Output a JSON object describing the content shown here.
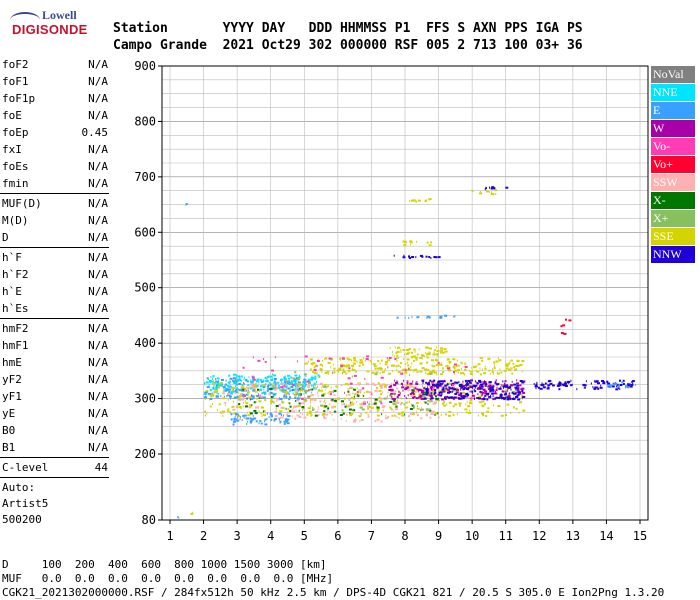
{
  "logo": {
    "line1": "Lowell",
    "line2": "DIGISONDE"
  },
  "header": {
    "row1": "Station       YYYY DAY   DDD HHMMSS P1  FFS S AXN PPS IGA PS",
    "row2": "Campo Grande  2021 Oct29 302 000000 RSF 005 2 713 100 03+ 36"
  },
  "params": {
    "group1": [
      {
        "k": "foF2",
        "v": "N/A"
      },
      {
        "k": "foF1",
        "v": "N/A"
      },
      {
        "k": "foF1p",
        "v": "N/A"
      },
      {
        "k": "foE",
        "v": "N/A"
      },
      {
        "k": "foEp",
        "v": "0.45"
      },
      {
        "k": "fxI",
        "v": "N/A"
      },
      {
        "k": "foEs",
        "v": "N/A"
      },
      {
        "k": "fmin",
        "v": "N/A"
      }
    ],
    "group2": [
      {
        "k": "MUF(D)",
        "v": "N/A"
      },
      {
        "k": "M(D)",
        "v": "N/A"
      },
      {
        "k": "D",
        "v": "N/A"
      }
    ],
    "group3": [
      {
        "k": "h`F",
        "v": "N/A"
      },
      {
        "k": "h`F2",
        "v": "N/A"
      },
      {
        "k": "h`E",
        "v": "N/A"
      },
      {
        "k": "h`Es",
        "v": "N/A"
      }
    ],
    "group4": [
      {
        "k": "hmF2",
        "v": "N/A"
      },
      {
        "k": "hmF1",
        "v": "N/A"
      },
      {
        "k": "hmE",
        "v": "N/A"
      },
      {
        "k": "yF2",
        "v": "N/A"
      },
      {
        "k": "yF1",
        "v": "N/A"
      },
      {
        "k": "yE",
        "v": "N/A"
      },
      {
        "k": "B0",
        "v": "N/A"
      },
      {
        "k": "B1",
        "v": "N/A"
      }
    ],
    "clevel": {
      "k": "C-level",
      "v": "44"
    },
    "auto_label": "Auto:",
    "auto_name": "Artist5",
    "auto_ver": "500200"
  },
  "legend": [
    {
      "label": "NoVal",
      "color": "#808080"
    },
    {
      "label": "NNE",
      "color": "#00e5ff"
    },
    {
      "label": "E",
      "color": "#3aa0ff"
    },
    {
      "label": "W",
      "color": "#a800a8"
    },
    {
      "label": "Vo-",
      "color": "#ff3cb4"
    },
    {
      "label": "Vo+",
      "color": "#ff0030"
    },
    {
      "label": "SSW",
      "color": "#ffb0b0"
    },
    {
      "label": "X-",
      "color": "#007800"
    },
    {
      "label": "X+",
      "color": "#88c060"
    },
    {
      "label": "SSE",
      "color": "#d4d400"
    },
    {
      "label": "NNW",
      "color": "#2000d8"
    }
  ],
  "footer": {
    "row1": "D     100  200  400  600  800 1000 1500 3000 [km]",
    "row2": "MUF   0.0  0.0  0.0  0.0  0.0  0.0  0.0  0.0 [MHz]",
    "row3": "CGK21_2021302000000.RSF / 284fx512h 50 kHz 2.5 km / DPS-4D CGK21 821 / 20.5 S 305.0 E Ion2Png 1.3.20"
  },
  "chart_data": {
    "type": "scatter",
    "xlim": [
      1,
      15
    ],
    "ylim": [
      80,
      900
    ],
    "xticks": [
      "1",
      "2",
      "3",
      "4",
      "5",
      "6",
      "7",
      "8",
      "9",
      "10",
      "11",
      "12",
      "13",
      "14",
      "15"
    ],
    "yticks": [
      "900",
      "800",
      "700",
      "600",
      "500",
      "400",
      "300",
      "200",
      "80"
    ],
    "clusters": [
      {
        "color": "#3aa0ff",
        "x": [
          2.0,
          5.0
        ],
        "y": [
          300,
          340
        ],
        "n": 220
      },
      {
        "color": "#00e5ff",
        "x": [
          2.0,
          5.5
        ],
        "y": [
          310,
          345
        ],
        "n": 160
      },
      {
        "color": "#d4d400",
        "x": [
          2.0,
          11.5
        ],
        "y": [
          270,
          330
        ],
        "n": 380
      },
      {
        "color": "#ffb0b0",
        "x": [
          2.5,
          9.0
        ],
        "y": [
          260,
          330
        ],
        "n": 240
      },
      {
        "color": "#d4d400",
        "x": [
          5.0,
          11.5
        ],
        "y": [
          345,
          375
        ],
        "n": 260
      },
      {
        "color": "#a800a8",
        "x": [
          7.5,
          11.5
        ],
        "y": [
          300,
          335
        ],
        "n": 220
      },
      {
        "color": "#2000d8",
        "x": [
          8.5,
          11.5
        ],
        "y": [
          300,
          335
        ],
        "n": 200
      },
      {
        "color": "#2000d8",
        "x": [
          11.8,
          14.8
        ],
        "y": [
          318,
          335
        ],
        "n": 90
      },
      {
        "color": "#3aa0ff",
        "x": [
          2.8,
          4.5
        ],
        "y": [
          255,
          275
        ],
        "n": 60
      },
      {
        "color": "#007800",
        "x": [
          3.0,
          9.0
        ],
        "y": [
          270,
          320
        ],
        "n": 80
      },
      {
        "color": "#ff3cb4",
        "x": [
          3.0,
          10.0
        ],
        "y": [
          290,
          380
        ],
        "n": 70
      },
      {
        "color": "#88c060",
        "x": [
          4.0,
          9.0
        ],
        "y": [
          280,
          350
        ],
        "n": 60
      },
      {
        "color": "#d4d400",
        "x": [
          7.5,
          9.2
        ],
        "y": [
          375,
          395
        ],
        "n": 60
      },
      {
        "color": "#2000d8",
        "x": [
          7.6,
          9.0
        ],
        "y": [
          555,
          560
        ],
        "n": 16
      },
      {
        "color": "#d4d400",
        "x": [
          7.9,
          8.8
        ],
        "y": [
          578,
          586
        ],
        "n": 12
      },
      {
        "color": "#d4d400",
        "x": [
          8.0,
          8.8
        ],
        "y": [
          655,
          662
        ],
        "n": 10
      },
      {
        "color": "#d4d400",
        "x": [
          9.9,
          10.8
        ],
        "y": [
          670,
          678
        ],
        "n": 12
      },
      {
        "color": "#2000d8",
        "x": [
          10.3,
          11.0
        ],
        "y": [
          678,
          684
        ],
        "n": 8
      },
      {
        "color": "#3aa0ff",
        "x": [
          7.6,
          9.5
        ],
        "y": [
          447,
          452
        ],
        "n": 14
      },
      {
        "color": "#ff0030",
        "x": [
          12.5,
          12.9
        ],
        "y": [
          410,
          460
        ],
        "n": 6
      },
      {
        "color": "#3aa0ff",
        "x": [
          14.0,
          14.9
        ],
        "y": [
          322,
          332
        ],
        "n": 18
      },
      {
        "color": "#d4d400",
        "x": [
          1.6,
          1.8
        ],
        "y": [
          92,
          96
        ],
        "n": 2
      },
      {
        "color": "#3aa0ff",
        "x": [
          1.2,
          1.4
        ],
        "y": [
          85,
          88
        ],
        "n": 2
      },
      {
        "color": "#3aa0ff",
        "x": [
          1.45,
          1.5
        ],
        "y": [
          650,
          654
        ],
        "n": 2
      }
    ]
  }
}
